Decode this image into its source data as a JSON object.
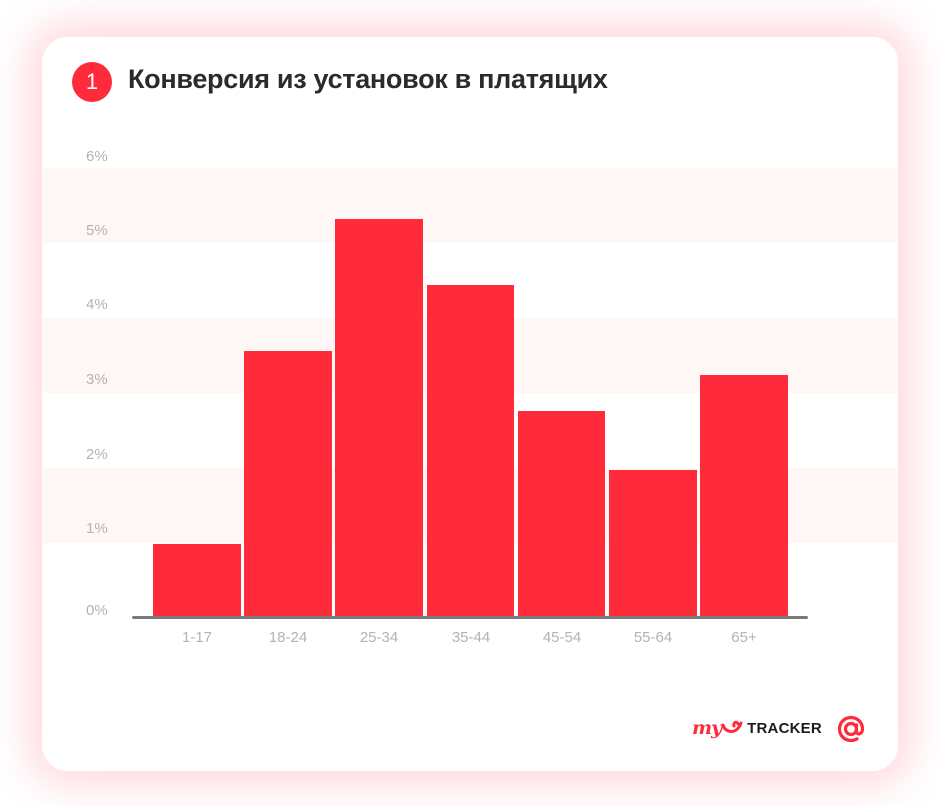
{
  "header": {
    "badge_number": "1",
    "title": "Конверсия из установок в платящих"
  },
  "colors": {
    "accent": "#ff2a3a",
    "band": "#fff6f6",
    "axis": "#7b7b7b",
    "tick_text": "#b3b3b3",
    "title_text": "#2b2b2b"
  },
  "y_axis": {
    "ticks": [
      "0%",
      "1%",
      "2%",
      "3%",
      "4%",
      "5%",
      "6%"
    ]
  },
  "x_axis": {
    "ticks": [
      "1-17",
      "18-24",
      "25-34",
      "35-44",
      "45-54",
      "55-64",
      "65+"
    ]
  },
  "footer": {
    "logo_my": "my",
    "logo_tracker": "TRACKER",
    "at_logo": "@"
  },
  "chart_data": {
    "type": "bar",
    "title": "Конверсия из установок в платящих",
    "categories": [
      "1-17",
      "18-24",
      "25-34",
      "35-44",
      "45-54",
      "55-64",
      "65+"
    ],
    "values": [
      0.97,
      3.55,
      5.31,
      4.43,
      2.75,
      1.96,
      3.23
    ],
    "unit": "%",
    "xlabel": "",
    "ylabel": "",
    "ylim": [
      0,
      6
    ],
    "yticks": [
      0,
      1,
      2,
      3,
      4,
      5,
      6
    ],
    "grid": "alternating horizontal bands",
    "legend": "none"
  }
}
